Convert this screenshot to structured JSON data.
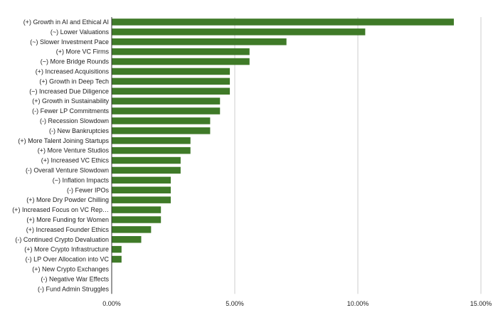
{
  "chart_data": {
    "type": "bar",
    "orientation": "horizontal",
    "categories": [
      "(+) Growth in AI and Ethical AI",
      "(~) Lower Valuations",
      "(~) Slower Investment Pace",
      "(+) More VC Firms",
      "(~) More Bridge Rounds",
      "(+) Increased Acquisitions",
      "(+) Growth in Deep Tech",
      "(~) Increased Due Diligence",
      "(+) Growth in Sustainability",
      "(-) Fewer LP Commitments",
      "(-) Recession Slowdown",
      "(-) New Bankruptcies",
      "(+) More Talent Joining Startups",
      "(+) More Venture Studios",
      "(+) Increased VC Ethics",
      "(-) Overall Venture Slowdown",
      "(~) Inflation Impacts",
      "(-) Fewer IPOs",
      "(+) More Dry Powder Chilling",
      "(+) Increased Focus on VC Rep…",
      "(+) More Funding for Women",
      "(+) Increased Founder Ethics",
      "(-) Continued Crypto Devaluation",
      "(+) More Crypto Infrastructure",
      "(-) LP Over Allocation into VC",
      "(+) New Crypto Exchanges",
      "(-) Negative War Effects",
      "(-) Fund Admin Struggles"
    ],
    "values": [
      13.9,
      10.3,
      7.1,
      5.6,
      5.6,
      4.8,
      4.8,
      4.8,
      4.4,
      4.4,
      4.0,
      4.0,
      3.2,
      3.2,
      2.8,
      2.8,
      2.4,
      2.4,
      2.4,
      2.0,
      2.0,
      1.6,
      1.2,
      0.4,
      0.4,
      0,
      0,
      0
    ],
    "xlim": [
      0,
      15
    ],
    "x_ticks": [
      "0.00%",
      "5.00%",
      "10.00%",
      "15.00%"
    ],
    "x_tick_values": [
      0,
      5,
      10,
      15
    ],
    "bar_color": "#3f7a28",
    "grid": true,
    "title": "",
    "xlabel": "",
    "ylabel": ""
  }
}
